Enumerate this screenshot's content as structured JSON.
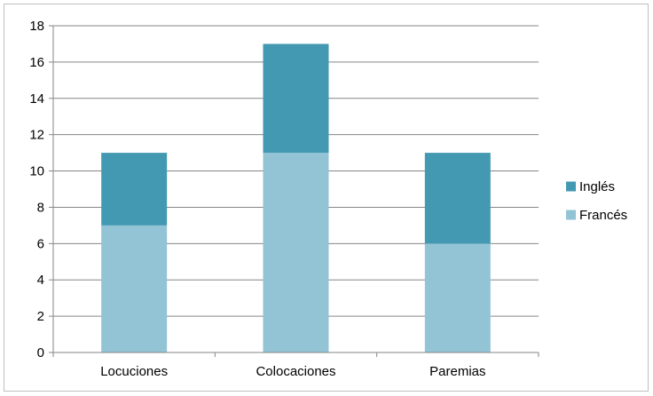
{
  "chart_data": {
    "type": "bar",
    "stacked": true,
    "title": "",
    "xlabel": "",
    "ylabel": "",
    "categories": [
      "Locuciones",
      "Colocaciones",
      "Paremias"
    ],
    "series": [
      {
        "name": "Francés",
        "values": [
          7,
          11,
          6
        ],
        "color": "#93c4d6"
      },
      {
        "name": "Inglés",
        "values": [
          4,
          6,
          5
        ],
        "color": "#4399b2"
      }
    ],
    "ylim": [
      0,
      18
    ],
    "yticks": [
      0,
      2,
      4,
      6,
      8,
      10,
      12,
      14,
      16,
      18
    ],
    "grid": true,
    "legend": "right",
    "legend_order": [
      "Inglés",
      "Francés"
    ]
  }
}
